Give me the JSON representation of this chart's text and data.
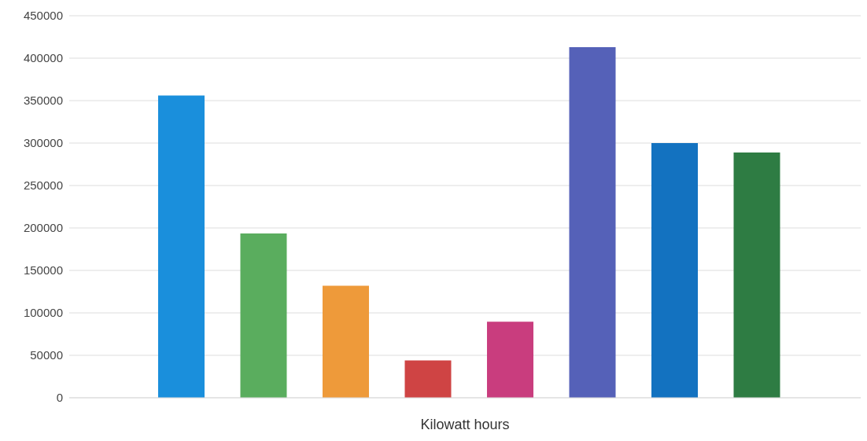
{
  "chart_data": {
    "type": "bar",
    "xlabel": "Kilowatt hours",
    "categories": [
      null,
      null,
      null,
      null,
      null,
      null,
      null,
      null
    ],
    "values": [
      356000,
      193500,
      132000,
      44000,
      89500,
      413000,
      300000,
      289000
    ],
    "colors": [
      "#1a8fdc",
      "#5aad5e",
      "#ee9a3a",
      "#cf4444",
      "#c93d7e",
      "#5561b8",
      "#1372c0",
      "#2e7c43"
    ],
    "ylim": [
      0,
      450000
    ],
    "yticks": [
      0,
      50000,
      100000,
      150000,
      200000,
      250000,
      300000,
      350000,
      400000,
      450000
    ],
    "grid": "y",
    "tick_labels": "y"
  }
}
